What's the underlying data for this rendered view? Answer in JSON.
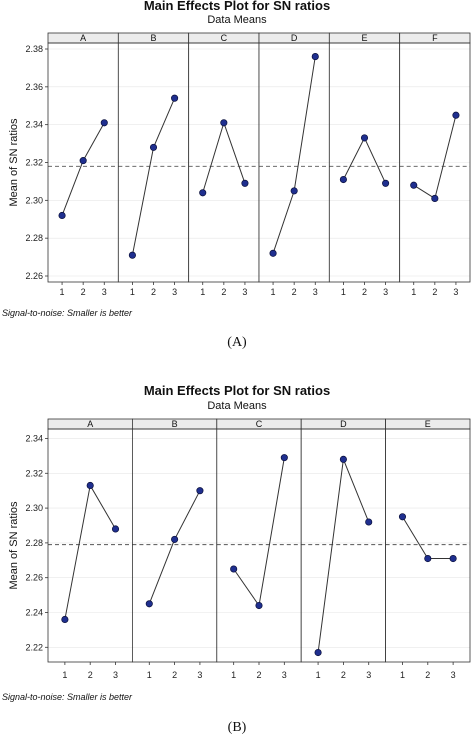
{
  "chart_data": [
    {
      "type": "line",
      "title": "Main Effects Plot for SN ratios",
      "subtitle": "Data Means",
      "ylabel": "Mean of SN ratios",
      "ylim": [
        2.26,
        2.38
      ],
      "yticks": [
        "2.26",
        "2.28",
        "2.30",
        "2.32",
        "2.34",
        "2.36",
        "2.38"
      ],
      "reference_line": 2.318,
      "footnote": "Signal-to-noise: Smaller is better",
      "caption": "(A)",
      "levels": [
        "1",
        "2",
        "3"
      ],
      "series": [
        {
          "name": "A",
          "values": [
            2.292,
            2.321,
            2.341
          ]
        },
        {
          "name": "B",
          "values": [
            2.271,
            2.328,
            2.354
          ]
        },
        {
          "name": "C",
          "values": [
            2.304,
            2.341,
            2.309
          ]
        },
        {
          "name": "D",
          "values": [
            2.272,
            2.305,
            2.376
          ]
        },
        {
          "name": "E",
          "values": [
            2.311,
            2.333,
            2.309
          ]
        },
        {
          "name": "F",
          "values": [
            2.308,
            2.301,
            2.345
          ]
        }
      ],
      "colors": {
        "marker": "#1f2f8f",
        "line": "#333333",
        "refline": "#555555"
      }
    },
    {
      "type": "line",
      "title": "Main Effects Plot for SN ratios",
      "subtitle": "Data Means",
      "ylabel": "Mean of SN ratios",
      "ylim": [
        2.215,
        2.342
      ],
      "yticks": [
        "2.22",
        "2.24",
        "2.26",
        "2.28",
        "2.30",
        "2.32",
        "2.34"
      ],
      "reference_line": 2.279,
      "footnote": "Signal-to-noise: Smaller is better",
      "caption": "(B)",
      "levels": [
        "1",
        "2",
        "3"
      ],
      "series": [
        {
          "name": "A",
          "values": [
            2.236,
            2.313,
            2.288
          ]
        },
        {
          "name": "B",
          "values": [
            2.245,
            2.282,
            2.31
          ]
        },
        {
          "name": "C",
          "values": [
            2.265,
            2.244,
            2.329
          ]
        },
        {
          "name": "D",
          "values": [
            2.217,
            2.328,
            2.292
          ]
        },
        {
          "name": "E",
          "values": [
            2.295,
            2.271,
            2.271
          ]
        }
      ],
      "colors": {
        "marker": "#1f2f8f",
        "line": "#333333",
        "refline": "#555555"
      }
    }
  ]
}
